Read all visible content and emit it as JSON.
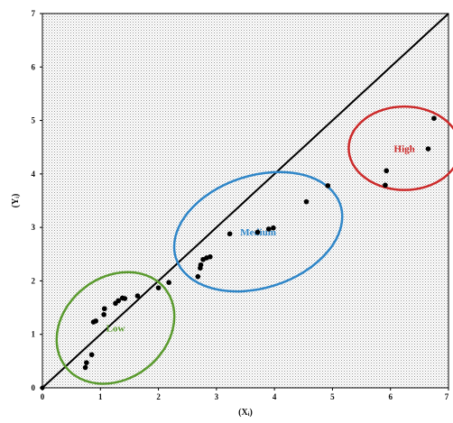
{
  "chart_data": {
    "type": "scatter",
    "xlabel": "(Xᵢ)",
    "ylabel": "(Yᵢ)",
    "xlim": [
      0,
      7
    ],
    "ylim": [
      0,
      7
    ],
    "x_ticks": [
      "0",
      "1",
      "2",
      "3",
      "4",
      "5",
      "6",
      "7"
    ],
    "y_ticks": [
      "0",
      "1",
      "2",
      "3",
      "4",
      "5",
      "6",
      "7"
    ],
    "background": "dotted",
    "reference_line": {
      "from": [
        0,
        0
      ],
      "to": [
        7,
        7
      ],
      "color": "#000000"
    },
    "points": [
      [
        0.74,
        0.38
      ],
      [
        0.76,
        0.47
      ],
      [
        0.85,
        0.62
      ],
      [
        0.88,
        1.23
      ],
      [
        0.92,
        1.25
      ],
      [
        1.06,
        1.37
      ],
      [
        1.07,
        1.48
      ],
      [
        1.26,
        1.58
      ],
      [
        1.31,
        1.63
      ],
      [
        1.38,
        1.68
      ],
      [
        1.42,
        1.67
      ],
      [
        1.64,
        1.72
      ],
      [
        2.0,
        1.87
      ],
      [
        2.18,
        1.97
      ],
      [
        2.68,
        2.08
      ],
      [
        2.72,
        2.24
      ],
      [
        2.73,
        2.3
      ],
      [
        2.77,
        2.4
      ],
      [
        2.83,
        2.43
      ],
      [
        2.89,
        2.45
      ],
      [
        3.23,
        2.88
      ],
      [
        3.71,
        2.91
      ],
      [
        3.9,
        2.97
      ],
      [
        3.98,
        2.99
      ],
      [
        4.55,
        3.48
      ],
      [
        4.92,
        3.78
      ],
      [
        5.91,
        3.79
      ],
      [
        5.93,
        4.06
      ],
      [
        6.65,
        4.47
      ],
      [
        6.75,
        5.04
      ]
    ],
    "point_color": "#000000",
    "clusters": [
      {
        "label": "Low",
        "color": "#5a9a2e",
        "cx": 1.26,
        "cy": 1.12,
        "rx": 1.09,
        "ry": 0.95,
        "rotate": -38
      },
      {
        "label": "Medium",
        "color": "#2f86c8",
        "cx": 3.72,
        "cy": 2.92,
        "rx": 1.49,
        "ry": 1.05,
        "rotate": -18
      },
      {
        "label": "High",
        "color": "#cc2a2a",
        "cx": 6.24,
        "cy": 4.48,
        "rx": 0.96,
        "ry": 0.78,
        "rotate": 0
      }
    ]
  }
}
